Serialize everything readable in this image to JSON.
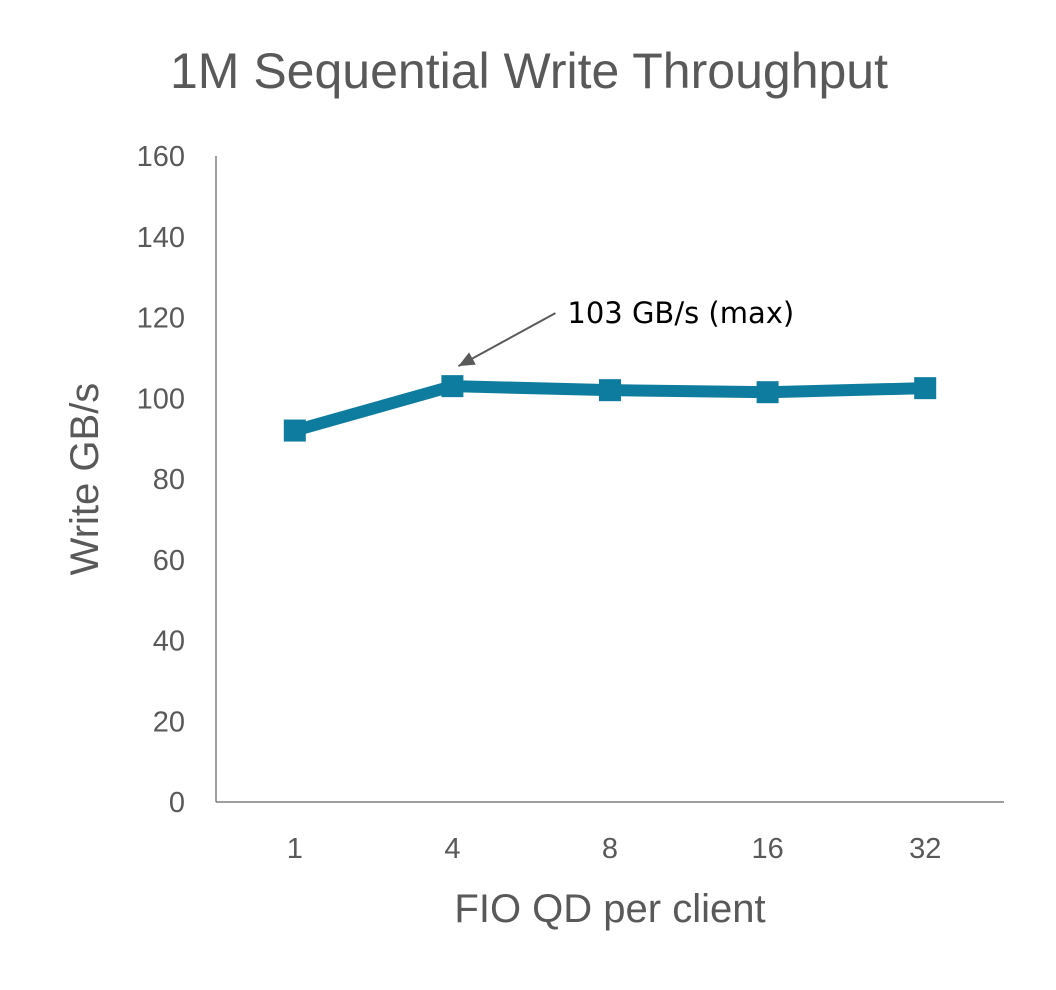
{
  "chart_data": {
    "type": "line",
    "title": "1M Sequential Write Throughput",
    "xlabel": "FIO QD per client",
    "ylabel": "Write GB/s",
    "categories": [
      "1",
      "4",
      "8",
      "16",
      "32"
    ],
    "series": [
      {
        "values": [
          92,
          103,
          102,
          101.5,
          102.5
        ]
      }
    ],
    "ylim": [
      0,
      160
    ],
    "yticks": [
      0,
      20,
      40,
      60,
      80,
      100,
      120,
      140,
      160
    ],
    "grid": false,
    "legend": "none",
    "annotations": [
      {
        "text": "103 GB/s (max)",
        "category": "4",
        "value": 103
      }
    ],
    "colors": {
      "series": "#0E7C9E",
      "axis": "#7F7F7F",
      "text": "#595959",
      "arrow": "#595959"
    }
  }
}
